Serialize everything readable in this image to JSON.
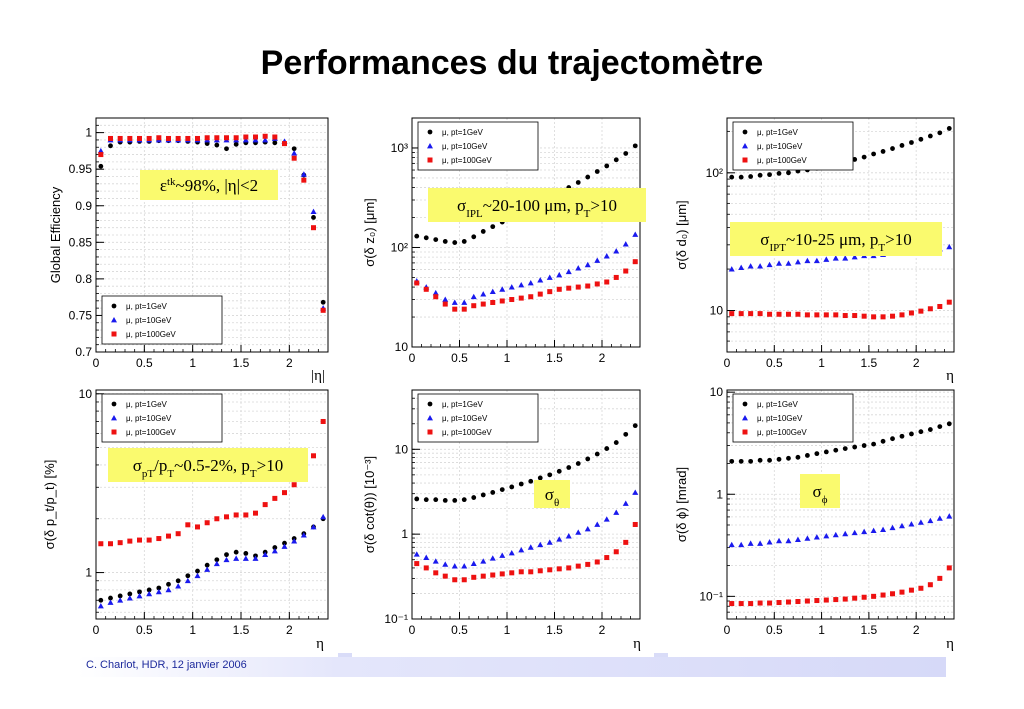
{
  "slide": {
    "title": "Performances du trajectomètre",
    "footer": "C. Charlot, HDR, 12 janvier 2006"
  },
  "colors": {
    "pt1": "#000000",
    "pt10": "#1a1aee",
    "pt100": "#ee1111",
    "callout_bg": "#fafa6e"
  },
  "chart_data": [
    {
      "id": "eff",
      "type": "scatter",
      "ylabel": "Global Efficiency",
      "xlabel": "|η|",
      "ylog": false,
      "xlim": [
        0,
        2.4
      ],
      "ylim": [
        0.7,
        1.02
      ],
      "yticks": [
        0.7,
        0.75,
        0.8,
        0.85,
        0.9,
        0.95,
        1
      ],
      "ytick_labels": [
        "0.7",
        "0.75",
        "0.8",
        "0.85",
        "0.9",
        "0.95",
        "1"
      ],
      "xticks": [
        0,
        0.5,
        1,
        1.5,
        2
      ],
      "xtick_labels": [
        "0",
        "0.5",
        "1",
        "1.5",
        "2"
      ],
      "legend": [
        "μ, pt=1GeV",
        "μ, pt=10GeV",
        "μ, pt=100GeV"
      ],
      "legend_position": "bottom-left",
      "callout": {
        "base": "ε",
        "sup": "tk",
        "text": "~98%, |η|<2"
      },
      "x": [
        0.05,
        0.15,
        0.25,
        0.35,
        0.45,
        0.55,
        0.65,
        0.75,
        0.85,
        0.95,
        1.05,
        1.15,
        1.25,
        1.35,
        1.45,
        1.55,
        1.65,
        1.75,
        1.85,
        1.95,
        2.05,
        2.15,
        2.25,
        2.35
      ],
      "series": [
        {
          "name": "μ, pt=1GeV",
          "values": [
            0.954,
            0.982,
            0.987,
            0.987,
            0.988,
            0.988,
            0.989,
            0.989,
            0.989,
            0.988,
            0.987,
            0.985,
            0.983,
            0.978,
            0.984,
            0.986,
            0.986,
            0.987,
            0.986,
            0.985,
            0.978,
            0.942,
            0.884,
            0.768
          ]
        },
        {
          "name": "μ, pt=10GeV",
          "values": [
            0.975,
            0.99,
            0.99,
            0.99,
            0.99,
            0.99,
            0.99,
            0.99,
            0.99,
            0.99,
            0.99,
            0.99,
            0.99,
            0.99,
            0.99,
            0.99,
            0.99,
            0.99,
            0.992,
            0.988,
            0.972,
            0.943,
            0.892,
            0.76
          ]
        },
        {
          "name": "μ, pt=100GeV",
          "values": [
            0.97,
            0.992,
            0.992,
            0.992,
            0.992,
            0.992,
            0.993,
            0.992,
            0.992,
            0.992,
            0.992,
            0.993,
            0.993,
            0.993,
            0.993,
            0.994,
            0.994,
            0.995,
            0.994,
            0.985,
            0.965,
            0.935,
            0.87,
            0.757
          ]
        }
      ]
    },
    {
      "id": "dz",
      "type": "scatter",
      "ylabel": "σ(δ z₀) [μm]",
      "xlabel": "",
      "ylog": true,
      "xlim": [
        0,
        2.4
      ],
      "ylim": [
        10,
        2000
      ],
      "yticks": [
        10,
        100,
        1000
      ],
      "ytick_labels": [
        "10",
        "10²",
        "10³"
      ],
      "xticks": [
        0,
        0.5,
        1,
        1.5,
        2
      ],
      "xtick_labels": [
        "0",
        "0.5",
        "1",
        "1.5",
        "2"
      ],
      "legend": [
        "μ, pt=1GeV",
        "μ, pt=10GeV",
        "μ, pt=100GeV"
      ],
      "legend_position": "top-left",
      "callout": {
        "sigma": "σ",
        "sub": "IPL",
        "text": "~20-100 μm, p",
        "sub2": "T",
        "tail": ">10"
      },
      "x": [
        0.05,
        0.15,
        0.25,
        0.35,
        0.45,
        0.55,
        0.65,
        0.75,
        0.85,
        0.95,
        1.05,
        1.15,
        1.25,
        1.35,
        1.45,
        1.55,
        1.65,
        1.75,
        1.85,
        1.95,
        2.05,
        2.15,
        2.25,
        2.35
      ],
      "series": [
        {
          "name": "μ, pt=1GeV",
          "values": [
            130,
            125,
            120,
            115,
            112,
            115,
            128,
            145,
            162,
            180,
            200,
            225,
            250,
            280,
            320,
            360,
            400,
            450,
            510,
            580,
            660,
            760,
            880,
            1050
          ]
        },
        {
          "name": "μ, pt=10GeV",
          "values": [
            46,
            40,
            35,
            30,
            28,
            28,
            32,
            34,
            36,
            38,
            40,
            42,
            44,
            47,
            50,
            53,
            57,
            62,
            67,
            74,
            82,
            92,
            108,
            135
          ]
        },
        {
          "name": "μ, pt=100GeV",
          "values": [
            44,
            38,
            32,
            27,
            24,
            24,
            26,
            27,
            28,
            29,
            30,
            31,
            32,
            34,
            36,
            38,
            39,
            40,
            41,
            43,
            45,
            50,
            58,
            72
          ]
        }
      ]
    },
    {
      "id": "d0",
      "type": "scatter",
      "ylabel": "σ(δ d₀) [μm]",
      "xlabel": "η",
      "ylog": true,
      "xlim": [
        0,
        2.4
      ],
      "ylim": [
        5,
        250
      ],
      "yticks": [
        10,
        100
      ],
      "ytick_labels": [
        "10",
        "10²"
      ],
      "xticks": [
        0,
        0.5,
        1,
        1.5,
        2
      ],
      "xtick_labels": [
        "0",
        "0.5",
        "1",
        "1.5",
        "2"
      ],
      "legend": [
        "μ, pt=1GeV",
        "μ, pt=10GeV",
        "μ, pt=100GeV"
      ],
      "legend_position": "top-left",
      "callout": {
        "sigma": "σ",
        "sub": "IPT",
        "text": "~10-25 μm, p",
        "sub2": "T",
        "tail": ">10"
      },
      "x": [
        0.05,
        0.15,
        0.25,
        0.35,
        0.45,
        0.55,
        0.65,
        0.75,
        0.85,
        0.95,
        1.05,
        1.15,
        1.25,
        1.35,
        1.45,
        1.55,
        1.65,
        1.75,
        1.85,
        1.95,
        2.05,
        2.15,
        2.25,
        2.35
      ],
      "series": [
        {
          "name": "μ, pt=1GeV",
          "values": [
            93,
            93,
            94,
            96,
            97,
            99,
            100,
            103,
            105,
            108,
            112,
            116,
            120,
            125,
            130,
            137,
            143,
            150,
            158,
            166,
            175,
            185,
            195,
            210
          ]
        },
        {
          "name": "μ, pt=10GeV",
          "values": [
            20,
            20.5,
            21,
            21,
            21.5,
            22,
            22,
            22.5,
            23,
            23,
            23.5,
            24,
            24,
            24.5,
            25,
            25,
            25.5,
            26,
            26.5,
            27,
            27,
            27.5,
            28,
            29
          ]
        },
        {
          "name": "μ, pt=100GeV",
          "values": [
            9.5,
            9.5,
            9.5,
            9.5,
            9.4,
            9.4,
            9.4,
            9.4,
            9.3,
            9.3,
            9.3,
            9.3,
            9.2,
            9.2,
            9.1,
            9,
            9,
            9.1,
            9.3,
            9.6,
            9.9,
            10.3,
            10.7,
            11.5
          ]
        }
      ]
    },
    {
      "id": "dpt",
      "type": "scatter",
      "ylabel": "σ(δ p_t/p_t) [%]",
      "xlabel": "η",
      "ylog": true,
      "xlim": [
        0,
        2.4
      ],
      "ylim": [
        0.55,
        10.5
      ],
      "yticks": [
        1,
        10
      ],
      "ytick_labels": [
        "1",
        "10"
      ],
      "xticks": [
        0,
        0.5,
        1,
        1.5,
        2
      ],
      "xtick_labels": [
        "0",
        "0.5",
        "1",
        "1.5",
        "2"
      ],
      "legend": [
        "μ, pt=1GeV",
        "μ, pt=10GeV",
        "μ, pt=100GeV"
      ],
      "legend_position": "top-left",
      "callout": {
        "sigma": "σ",
        "sub": "pT",
        "text": "/p",
        "sub2": "T",
        "mid": "~0.5-2%, p",
        "sub3": "T",
        "tail": ">10"
      },
      "x": [
        0.05,
        0.15,
        0.25,
        0.35,
        0.45,
        0.55,
        0.65,
        0.75,
        0.85,
        0.95,
        1.05,
        1.15,
        1.25,
        1.35,
        1.45,
        1.55,
        1.65,
        1.75,
        1.85,
        1.95,
        2.05,
        2.15,
        2.25,
        2.35
      ],
      "series": [
        {
          "name": "μ, pt=1GeV",
          "values": [
            0.7,
            0.72,
            0.74,
            0.76,
            0.78,
            0.8,
            0.82,
            0.86,
            0.9,
            0.96,
            1.02,
            1.1,
            1.18,
            1.26,
            1.3,
            1.28,
            1.24,
            1.3,
            1.38,
            1.46,
            1.55,
            1.65,
            1.8,
            2
          ]
        },
        {
          "name": "μ, pt=10GeV",
          "values": [
            0.65,
            0.68,
            0.7,
            0.72,
            0.74,
            0.76,
            0.78,
            0.8,
            0.84,
            0.9,
            0.96,
            1.04,
            1.12,
            1.18,
            1.2,
            1.2,
            1.2,
            1.26,
            1.32,
            1.4,
            1.5,
            1.62,
            1.8,
            2.05
          ]
        },
        {
          "name": "μ, pt=100GeV",
          "values": [
            1.45,
            1.45,
            1.47,
            1.5,
            1.52,
            1.52,
            1.55,
            1.6,
            1.65,
            1.85,
            1.8,
            1.9,
            2,
            2.05,
            2.1,
            2.1,
            2.15,
            2.4,
            2.6,
            2.8,
            3.1,
            3.6,
            4.5,
            7
          ]
        }
      ]
    },
    {
      "id": "dcot",
      "type": "scatter",
      "ylabel": "σ(δ cot(θ)) [10⁻³]",
      "xlabel": "η",
      "ylog": true,
      "xlim": [
        0,
        2.4
      ],
      "ylim": [
        0.1,
        50
      ],
      "yticks": [
        0.1,
        1,
        10
      ],
      "ytick_labels": [
        "10⁻¹",
        "1",
        "10"
      ],
      "xticks": [
        0,
        0.5,
        1,
        1.5,
        2
      ],
      "xtick_labels": [
        "0",
        "0.5",
        "1",
        "1.5",
        "2"
      ],
      "legend": [
        "μ, pt=1GeV",
        "μ, pt=10GeV",
        "μ, pt=100GeV"
      ],
      "legend_position": "top-left",
      "callout": {
        "sigma": "σ",
        "sub": "θ"
      },
      "x": [
        0.05,
        0.15,
        0.25,
        0.35,
        0.45,
        0.55,
        0.65,
        0.75,
        0.85,
        0.95,
        1.05,
        1.15,
        1.25,
        1.35,
        1.45,
        1.55,
        1.65,
        1.75,
        1.85,
        1.95,
        2.05,
        2.15,
        2.25,
        2.35
      ],
      "series": [
        {
          "name": "μ, pt=1GeV",
          "values": [
            2.6,
            2.55,
            2.55,
            2.5,
            2.5,
            2.55,
            2.7,
            2.9,
            3.1,
            3.35,
            3.6,
            3.9,
            4.2,
            4.6,
            5,
            5.5,
            6.1,
            6.8,
            7.7,
            8.8,
            10.2,
            12,
            15,
            19
          ]
        },
        {
          "name": "μ, pt=10GeV",
          "values": [
            0.58,
            0.53,
            0.48,
            0.44,
            0.42,
            0.42,
            0.45,
            0.48,
            0.52,
            0.56,
            0.6,
            0.65,
            0.7,
            0.75,
            0.8,
            0.87,
            0.95,
            1.05,
            1.15,
            1.3,
            1.5,
            1.8,
            2.3,
            3.1
          ]
        },
        {
          "name": "μ, pt=100GeV",
          "values": [
            0.45,
            0.4,
            0.35,
            0.32,
            0.29,
            0.29,
            0.31,
            0.32,
            0.33,
            0.34,
            0.35,
            0.36,
            0.36,
            0.37,
            0.38,
            0.39,
            0.4,
            0.42,
            0.44,
            0.47,
            0.53,
            0.62,
            0.8,
            1.3
          ]
        }
      ]
    },
    {
      "id": "dphi",
      "type": "scatter",
      "ylabel": "σ(δ ϕ) [mrad]",
      "xlabel": "η",
      "ylog": true,
      "xlim": [
        0,
        2.4
      ],
      "ylim": [
        0.06,
        10.5
      ],
      "yticks": [
        0.1,
        1,
        10
      ],
      "ytick_labels": [
        "10⁻¹",
        "1",
        "10"
      ],
      "xticks": [
        0,
        0.5,
        1,
        1.5,
        2
      ],
      "xtick_labels": [
        "0",
        "0.5",
        "1",
        "1.5",
        "2"
      ],
      "legend": [
        "μ, pt=1GeV",
        "μ, pt=10GeV",
        "μ, pt=100GeV"
      ],
      "legend_position": "top-left",
      "callout": {
        "sigma": "σ",
        "sub": "ϕ"
      },
      "x": [
        0.05,
        0.15,
        0.25,
        0.35,
        0.45,
        0.55,
        0.65,
        0.75,
        0.85,
        0.95,
        1.05,
        1.15,
        1.25,
        1.35,
        1.45,
        1.55,
        1.65,
        1.75,
        1.85,
        1.95,
        2.05,
        2.15,
        2.25,
        2.35
      ],
      "series": [
        {
          "name": "μ, pt=1GeV",
          "values": [
            2.1,
            2.1,
            2.1,
            2.15,
            2.15,
            2.2,
            2.25,
            2.3,
            2.4,
            2.5,
            2.6,
            2.7,
            2.8,
            2.9,
            3,
            3.1,
            3.3,
            3.5,
            3.7,
            3.9,
            4.1,
            4.3,
            4.6,
            4.9
          ]
        },
        {
          "name": "μ, pt=10GeV",
          "values": [
            0.32,
            0.32,
            0.33,
            0.33,
            0.34,
            0.35,
            0.35,
            0.36,
            0.37,
            0.38,
            0.39,
            0.4,
            0.41,
            0.42,
            0.43,
            0.44,
            0.45,
            0.47,
            0.49,
            0.51,
            0.53,
            0.55,
            0.58,
            0.61
          ]
        },
        {
          "name": "μ, pt=100GeV",
          "values": [
            0.085,
            0.085,
            0.085,
            0.086,
            0.086,
            0.087,
            0.088,
            0.089,
            0.09,
            0.091,
            0.092,
            0.093,
            0.094,
            0.096,
            0.098,
            0.1,
            0.103,
            0.106,
            0.11,
            0.115,
            0.12,
            0.13,
            0.15,
            0.19
          ]
        }
      ]
    }
  ]
}
